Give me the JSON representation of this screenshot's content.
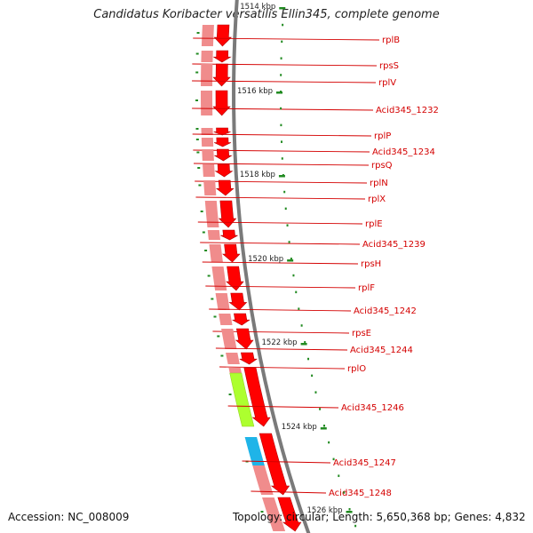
{
  "title": "Candidatus Koribacter versatilis Ellin345, complete genome",
  "accession": "Accession: NC_008009",
  "topology": "Topology: circular; Length: 5,650,368 bp; Genes: 4,832",
  "kbp_ticks": [
    "1514 kbp",
    "1516 kbp",
    "1518 kbp",
    "1520 kbp",
    "1522 kbp",
    "1524 kbp",
    "1526 kbp"
  ],
  "genes": [
    {
      "label": "rplB"
    },
    {
      "label": "rpsS"
    },
    {
      "label": "rplV"
    },
    {
      "label": "Acid345_1232"
    },
    {
      "label": "rplP"
    },
    {
      "label": "Acid345_1234"
    },
    {
      "label": "rpsQ"
    },
    {
      "label": "rplN"
    },
    {
      "label": "rplX"
    },
    {
      "label": "rplE"
    },
    {
      "label": "Acid345_1239"
    },
    {
      "label": "rpsH"
    },
    {
      "label": "rplF"
    },
    {
      "label": "Acid345_1242"
    },
    {
      "label": "rpsE"
    },
    {
      "label": "Acid345_1244"
    },
    {
      "label": "rplO"
    },
    {
      "label": "Acid345_1246"
    },
    {
      "label": "Acid345_1247"
    },
    {
      "label": "Acid345_1248"
    }
  ],
  "colors": {
    "gene_red": "#ff0000",
    "gene_pink": "#f08c8c",
    "highlight_green": "#adff2f",
    "highlight_blue": "#1fb4e8",
    "label_red": "#d40000",
    "tick_green": "#228b22",
    "backbone_gray": "#7a7a7a"
  }
}
